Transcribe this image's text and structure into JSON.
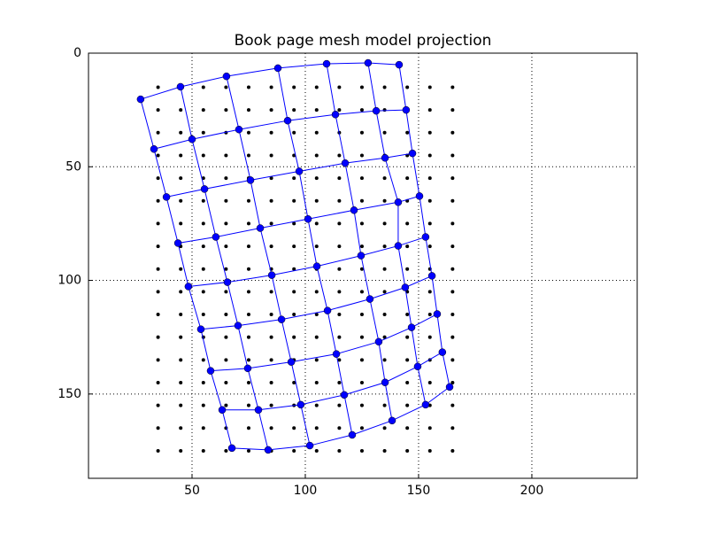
{
  "chart_data": {
    "type": "mesh",
    "title": "Book page mesh model projection",
    "color": "#0000ff",
    "quiver_color": "#000000",
    "xlim": [
      4.3,
      246.5
    ],
    "ylim": [
      187.1,
      0
    ],
    "y_inverted": true,
    "xticks": [
      50,
      100,
      150,
      200
    ],
    "yticks": [
      0,
      50,
      100,
      150
    ],
    "grid": true,
    "mesh_x": [
      [
        27.3,
        44.9,
        65.2,
        87.9,
        109.4,
        127.7,
        141.4
      ],
      [
        33.2,
        50.0,
        70.7,
        92.2,
        113.3,
        131.3,
        144.5
      ],
      [
        38.7,
        55.5,
        75.8,
        97.3,
        117.6,
        135.2,
        147.3
      ],
      [
        43.8,
        60.5,
        80.1,
        101.2,
        121.5,
        141.0,
        150.4
      ],
      [
        48.4,
        65.6,
        85.2,
        105.1,
        124.6,
        141.0,
        153.1
      ],
      [
        53.9,
        70.3,
        89.5,
        109.8,
        128.5,
        144.1,
        155.9
      ],
      [
        58.2,
        74.6,
        93.8,
        113.7,
        132.4,
        146.9,
        158.2
      ],
      [
        63.3,
        79.3,
        98.0,
        117.2,
        135.2,
        149.6,
        160.5
      ],
      [
        67.6,
        83.6,
        102.0,
        120.7,
        138.3,
        153.1,
        163.7
      ]
    ],
    "mesh_y": [
      [
        20.3,
        14.8,
        10.2,
        6.6,
        4.7,
        4.3,
        5.1
      ],
      [
        42.2,
        37.9,
        33.6,
        29.7,
        27.0,
        25.4,
        25.0
      ],
      [
        63.3,
        59.8,
        55.9,
        52.0,
        48.4,
        46.1,
        44.1
      ],
      [
        83.6,
        80.9,
        77.0,
        73.0,
        69.1,
        65.6,
        62.9
      ],
      [
        102.7,
        100.8,
        97.7,
        93.8,
        89.1,
        84.8,
        80.9
      ],
      [
        121.5,
        119.9,
        117.2,
        113.3,
        108.2,
        103.1,
        98.0
      ],
      [
        139.8,
        138.7,
        135.9,
        132.4,
        127.0,
        120.7,
        114.8
      ],
      [
        157.0,
        157.0,
        154.7,
        150.4,
        144.9,
        137.9,
        131.6
      ],
      [
        173.8,
        174.6,
        172.7,
        168.0,
        161.7,
        154.7,
        146.9
      ]
    ],
    "quiver_x": [
      35,
      45,
      55,
      65,
      75,
      85,
      95,
      105,
      115,
      125,
      135,
      145,
      155,
      165
    ],
    "quiver_y": [
      15,
      25,
      35,
      45,
      55,
      65,
      75,
      85,
      95,
      105,
      115,
      125,
      135,
      145,
      155,
      165,
      175
    ]
  }
}
